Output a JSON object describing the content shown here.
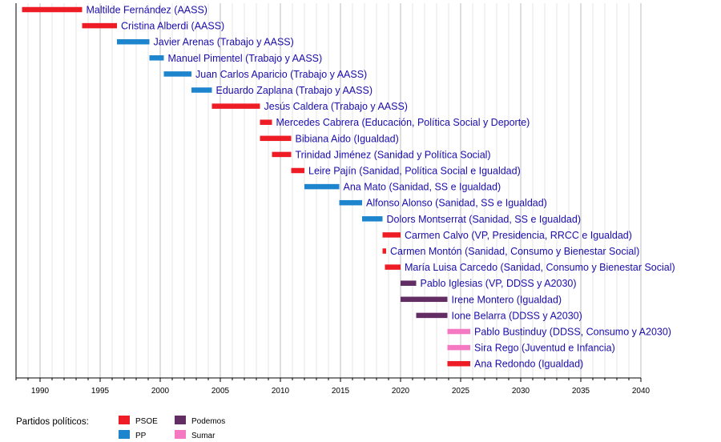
{
  "chart_data": {
    "type": "timeline",
    "x_range": [
      1988,
      2040
    ],
    "x_ticks": [
      1990,
      1995,
      2000,
      2005,
      2010,
      2015,
      2020,
      2025,
      2030,
      2035,
      2040
    ],
    "minor_grid_step": 1,
    "parties": [
      {
        "key": "PSOE",
        "label": "PSOE",
        "color": "#ee1c25"
      },
      {
        "key": "PP",
        "label": "PP",
        "color": "#1d84ce"
      },
      {
        "key": "Podemos",
        "label": "Podemos",
        "color": "#612d62"
      },
      {
        "key": "Sumar",
        "label": "Sumar",
        "color": "#f479c2"
      }
    ],
    "ministers": [
      {
        "name": "Maltilde Fernández (AASS)",
        "party": "PSOE",
        "start": 1988.5,
        "end": 1993.5
      },
      {
        "name": "Cristina Alberdi (AASS)",
        "party": "PSOE",
        "start": 1993.5,
        "end": 1996.4
      },
      {
        "name": "Javier Arenas (Trabajo y AASS)",
        "party": "PP",
        "start": 1996.4,
        "end": 1999.1
      },
      {
        "name": "Manuel Pimentel (Trabajo y AASS)",
        "party": "PP",
        "start": 1999.1,
        "end": 2000.3
      },
      {
        "name": "Juan Carlos Aparicio (Trabajo y AASS)",
        "party": "PP",
        "start": 2000.3,
        "end": 2002.6
      },
      {
        "name": "Eduardo Zaplana (Trabajo y AASS)",
        "party": "PP",
        "start": 2002.6,
        "end": 2004.3
      },
      {
        "name": "Jesús Caldera (Trabajo y AASS)",
        "party": "PSOE",
        "start": 2004.3,
        "end": 2008.3
      },
      {
        "name": "Mercedes Cabrera (Educación, Política Social y Deporte)",
        "party": "PSOE",
        "start": 2008.3,
        "end": 2009.3
      },
      {
        "name": "Bibiana Aido (Igualdad)",
        "party": "PSOE",
        "start": 2008.3,
        "end": 2010.9
      },
      {
        "name": "Trinidad Jiménez (Sanidad y Política Social)",
        "party": "PSOE",
        "start": 2009.3,
        "end": 2010.9
      },
      {
        "name": "Leire Pajín (Sanidad, Política Social e Igualdad)",
        "party": "PSOE",
        "start": 2010.9,
        "end": 2012.0
      },
      {
        "name": "Ana Mato (Sanidad, SS e Igualdad)",
        "party": "PP",
        "start": 2012.0,
        "end": 2014.9
      },
      {
        "name": "Alfonso Alonso (Sanidad, SS e Igualdad)",
        "party": "PP",
        "start": 2014.9,
        "end": 2016.8
      },
      {
        "name": "Dolors Montserrat (Sanidad, SS e Igualdad)",
        "party": "PP",
        "start": 2016.8,
        "end": 2018.5
      },
      {
        "name": "Carmen Calvo (VP, Presidencia, RRCC e Igualdad)",
        "party": "PSOE",
        "start": 2018.5,
        "end": 2020.0
      },
      {
        "name": "Carmen Montón (Sanidad, Consumo y Bienestar Social)",
        "party": "PSOE",
        "start": 2018.5,
        "end": 2018.8
      },
      {
        "name": "María Luisa Carcedo (Sanidad, Consumo y Bienestar Social)",
        "party": "PSOE",
        "start": 2018.7,
        "end": 2020.0
      },
      {
        "name": "Pablo Iglesias (VP, DDSS y A2030)",
        "party": "Podemos",
        "start": 2020.0,
        "end": 2021.3
      },
      {
        "name": "Irene Montero (Igualdad)",
        "party": "Podemos",
        "start": 2020.0,
        "end": 2023.9
      },
      {
        "name": "Ione Belarra (DDSS y A2030)",
        "party": "Podemos",
        "start": 2021.3,
        "end": 2023.9
      },
      {
        "name": "Pablo Bustinduy (DDSS, Consumo y A2030)",
        "party": "Sumar",
        "start": 2023.9,
        "end": 2025.8
      },
      {
        "name": "Sira Rego (Juventud e Infancia)",
        "party": "Sumar",
        "start": 2023.9,
        "end": 2025.8
      },
      {
        "name": "Ana Redondo (Igualdad)",
        "party": "PSOE",
        "start": 2023.9,
        "end": 2025.8
      }
    ]
  },
  "legend": {
    "title": "Partidos políticos:"
  }
}
